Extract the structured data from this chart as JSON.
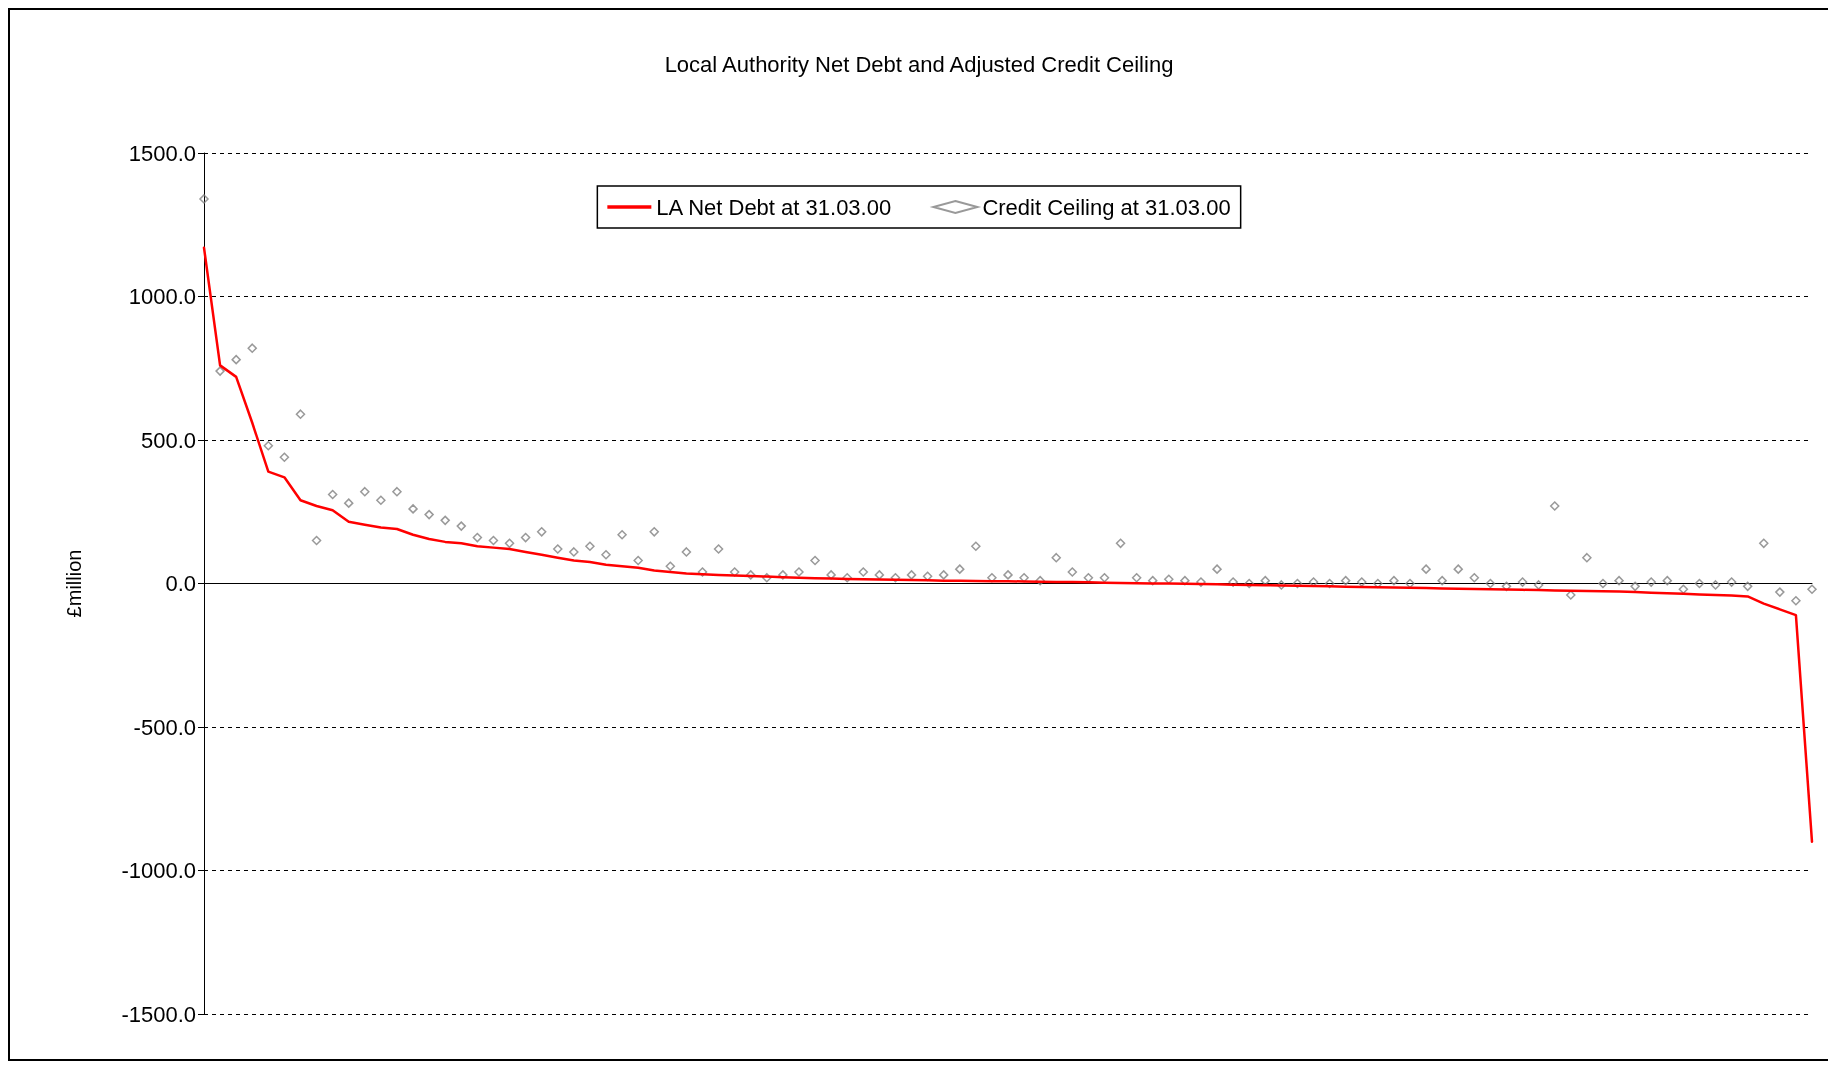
{
  "chart_data": {
    "type": "line",
    "title": "Local Authority Net Debt and Adjusted Credit Ceiling",
    "ylabel": "£million",
    "categories": [
      null,
      null,
      null,
      null,
      null,
      null,
      null,
      null,
      null,
      null,
      null,
      null,
      null,
      null,
      null,
      null,
      null,
      null,
      null,
      null,
      null,
      null,
      null,
      null,
      null,
      null,
      null,
      null,
      null,
      null,
      null,
      null,
      null,
      null,
      null,
      null,
      null,
      null,
      null,
      null,
      null,
      null,
      null,
      null,
      null,
      null,
      null,
      null,
      null,
      null,
      null,
      null,
      null,
      null,
      null,
      null,
      null,
      null,
      null,
      null,
      null,
      null,
      null,
      null,
      null,
      null,
      null,
      null,
      null,
      null,
      null,
      null,
      null,
      null,
      null,
      null,
      null,
      null,
      null,
      null,
      null,
      null,
      null,
      null,
      null,
      null,
      null,
      null,
      null,
      null,
      null,
      null,
      null,
      null,
      null,
      null,
      null,
      null,
      null,
      null,
      null
    ],
    "series": [
      {
        "name": "LA Net Debt at 31.03.00",
        "color": "#ff0000",
        "marker": "none",
        "line_style": "solid",
        "values": [
          1170,
          760,
          720,
          560,
          390,
          370,
          290,
          270,
          255,
          215,
          205,
          195,
          190,
          170,
          155,
          145,
          140,
          130,
          125,
          120,
          110,
          100,
          90,
          80,
          75,
          65,
          60,
          55,
          45,
          40,
          35,
          32,
          30,
          28,
          26,
          24,
          22,
          20,
          18,
          17,
          16,
          15,
          14,
          13,
          12,
          11,
          10,
          10,
          9,
          8,
          8,
          7,
          6,
          5,
          5,
          4,
          3,
          2,
          1,
          0,
          0,
          -1,
          -2,
          -3,
          -4,
          -5,
          -6,
          -7,
          -8,
          -9,
          -10,
          -11,
          -12,
          -13,
          -14,
          -15,
          -16,
          -17,
          -18,
          -19,
          -20,
          -21,
          -22,
          -23,
          -24,
          -25,
          -26,
          -27,
          -28,
          -30,
          -32,
          -34,
          -36,
          -38,
          -40,
          -42,
          -45,
          -70,
          -90,
          -110,
          -900
        ]
      },
      {
        "name": "Credit Ceiling at 31.03.00",
        "type": "scatter",
        "color": "#808080",
        "marker": "diamond",
        "values": [
          1340,
          740,
          780,
          820,
          480,
          440,
          590,
          150,
          310,
          280,
          320,
          290,
          320,
          260,
          240,
          220,
          200,
          160,
          150,
          140,
          160,
          180,
          120,
          110,
          130,
          100,
          170,
          80,
          180,
          60,
          110,
          40,
          120,
          40,
          30,
          20,
          30,
          40,
          80,
          30,
          20,
          40,
          30,
          20,
          30,
          25,
          30,
          50,
          130,
          20,
          30,
          20,
          10,
          90,
          40,
          20,
          20,
          140,
          20,
          10,
          15,
          10,
          5,
          50,
          5,
          0,
          10,
          -5,
          0,
          5,
          0,
          10,
          5,
          0,
          10,
          0,
          50,
          10,
          50,
          20,
          0,
          -10,
          5,
          -5,
          270,
          -40,
          90,
          0,
          10,
          -10,
          5,
          10,
          -20,
          0,
          -5,
          5,
          -10,
          140,
          -30,
          -60,
          -20
        ]
      }
    ],
    "ylim": [
      -1500,
      1500
    ],
    "yticks": [
      {
        "value": -1500,
        "label": "-1500.0"
      },
      {
        "value": -1000,
        "label": "-1000.0"
      },
      {
        "value": -500,
        "label": "-500.0"
      },
      {
        "value": 0,
        "label": "0.0"
      },
      {
        "value": 500,
        "label": "500.0"
      },
      {
        "value": 1000,
        "label": "1000.0"
      },
      {
        "value": 1500,
        "label": "1500.0"
      }
    ],
    "grid": "y",
    "legend": "top"
  }
}
